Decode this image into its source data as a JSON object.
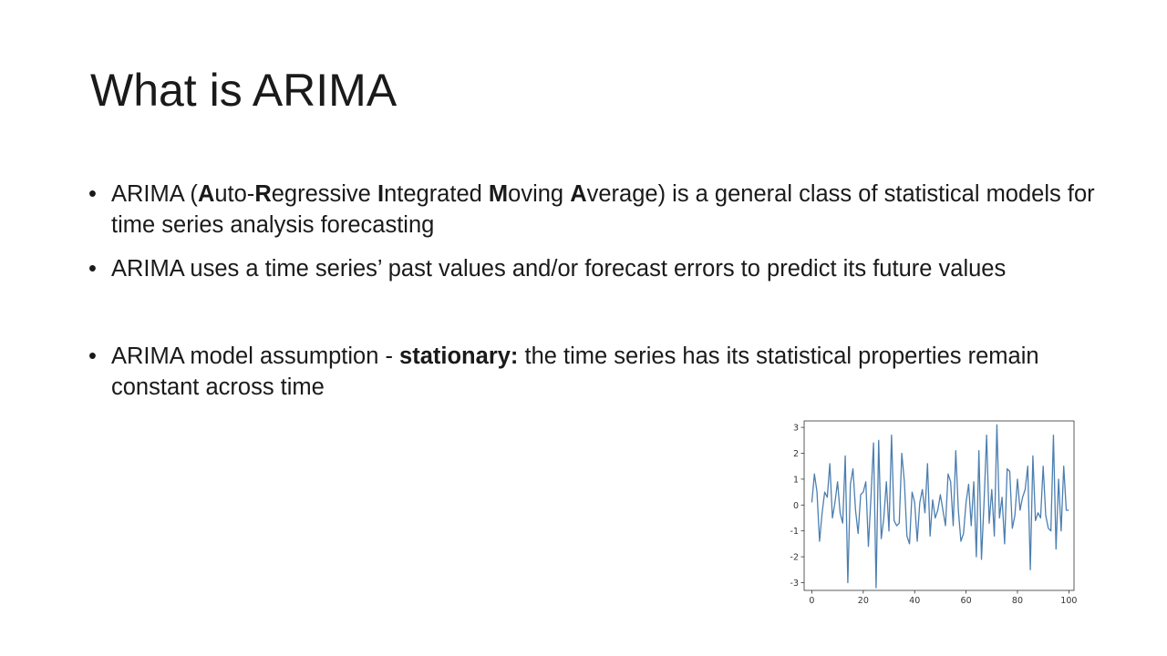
{
  "slide": {
    "title": "What is ARIMA",
    "bullets": [
      {
        "runs": [
          {
            "text": "ARIMA (",
            "bold": false
          },
          {
            "text": "A",
            "bold": true
          },
          {
            "text": "uto-",
            "bold": false
          },
          {
            "text": "R",
            "bold": true
          },
          {
            "text": "egressive ",
            "bold": false
          },
          {
            "text": "I",
            "bold": true
          },
          {
            "text": "ntegrated ",
            "bold": false
          },
          {
            "text": "M",
            "bold": true
          },
          {
            "text": "oving ",
            "bold": false
          },
          {
            "text": "A",
            "bold": true
          },
          {
            "text": "verage) is a general class of statistical models for time series analysis forecasting",
            "bold": false
          }
        ]
      },
      {
        "runs": [
          {
            "text": "ARIMA uses a time series’ past values and/or forecast errors to predict its future values",
            "bold": false
          }
        ]
      },
      {
        "runs": [
          {
            "text": "ARIMA model assumption - ",
            "bold": false
          },
          {
            "text": "stationary:",
            "bold": true
          },
          {
            "text": " the time series has its statistical properties remain constant across time",
            "bold": false
          }
        ]
      }
    ],
    "bullet_symbol": "•"
  },
  "chart_data": {
    "type": "line",
    "title": "",
    "xlabel": "",
    "ylabel": "",
    "xlim": [
      -3,
      102
    ],
    "ylim": [
      -3.3,
      3.25
    ],
    "xticks": [
      0,
      20,
      40,
      60,
      80,
      100
    ],
    "yticks": [
      -3,
      -2,
      -1,
      0,
      1,
      2,
      3
    ],
    "grid": false,
    "color": "#4c7fb0",
    "series": [
      {
        "values": [
          0.1,
          1.2,
          0.5,
          -1.4,
          -0.3,
          0.5,
          0.3,
          1.6,
          -0.5,
          0.1,
          0.9,
          -0.3,
          -0.7,
          1.9,
          -3.0,
          0.8,
          1.4,
          -0.2,
          -1.1,
          0.4,
          0.5,
          0.9,
          -1.6,
          0.3,
          2.4,
          -3.2,
          2.5,
          -1.3,
          -0.5,
          0.9,
          -1.0,
          2.7,
          -0.6,
          -0.8,
          -0.7,
          2.0,
          0.9,
          -1.2,
          -1.5,
          0.5,
          0.1,
          -1.4,
          0.1,
          0.6,
          -0.3,
          1.6,
          -1.2,
          0.2,
          -0.5,
          -0.2,
          0.4,
          -0.2,
          -0.8,
          1.2,
          0.9,
          -0.8,
          2.1,
          -0.2,
          -1.4,
          -1.1,
          0.1,
          0.8,
          -0.8,
          0.9,
          -2.0,
          2.1,
          -2.1,
          0.1,
          2.7,
          -0.7,
          0.6,
          -1.2,
          3.1,
          -0.5,
          0.3,
          -1.5,
          1.4,
          1.3,
          -0.9,
          -0.4,
          1.0,
          -0.2,
          0.3,
          0.6,
          1.5,
          -2.5,
          1.9,
          -0.6,
          -0.3,
          -0.5,
          1.5,
          -0.4,
          -0.9,
          -1.0,
          2.7,
          -1.7,
          1.0,
          -1.0,
          1.5,
          -0.2,
          -0.2
        ]
      }
    ]
  }
}
